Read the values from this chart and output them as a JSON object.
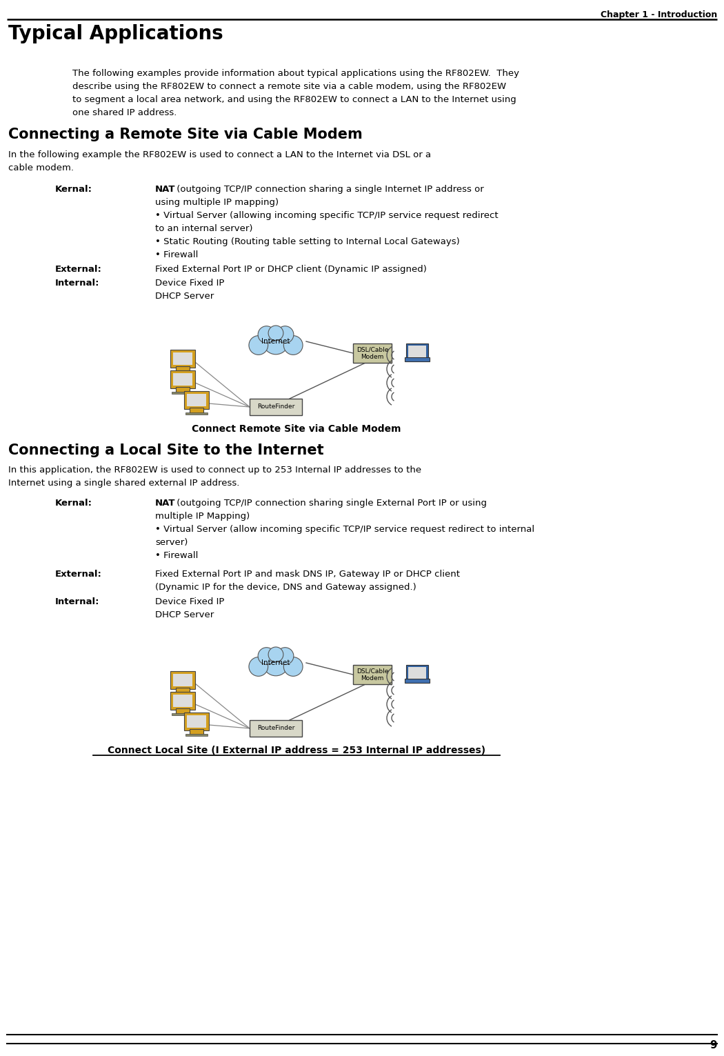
{
  "page_number": "9",
  "chapter_header": "Chapter 1 - Introduction",
  "title": "Typical Applications",
  "intro_text": "The following examples provide information about typical applications using the RF802EW.  They\ndescribe using the RF802EW to connect a remote site via a cable modem, using the RF802EW\nto segment a local area network, and using the RF802EW to connect a LAN to the Internet using\none shared IP address.",
  "section1_title": "Connecting a Remote Site via Cable Modem",
  "section1_intro": "In the following example the RF802EW is used to connect a LAN to the Internet via DSL or a\ncable modem.",
  "section1_kernal_label": "Kernal:",
  "section1_kernal_bold": "NAT",
  "section1_kernal_text1": " (outgoing TCP/IP connection sharing a single Internet IP address or",
  "section1_kernal_text2": "using multiple IP mapping)",
  "section1_kernal_text3": "• Virtual Server (allowing incoming specific TCP/IP service request redirect",
  "section1_kernal_text4": "to an internal server)",
  "section1_kernal_text5": "• Static Routing (Routing table setting to Internal Local Gateways)",
  "section1_kernal_text6": "• Firewall",
  "section1_external_label": "External:",
  "section1_external_text": "Fixed External Port IP or DHCP client (Dynamic IP assigned)",
  "section1_internal_label": "Internal:",
  "section1_internal_text1": "Device Fixed IP",
  "section1_internal_text2": "DHCP Server",
  "section1_caption": "Connect Remote Site via Cable Modem",
  "section2_title": "Connecting a Local Site to the Internet",
  "section2_intro": "In this application, the RF802EW is used to connect up to 253 Internal IP addresses to the\nInternet using a single shared external IP address.",
  "section2_kernal_label": "Kernal:",
  "section2_kernal_bold": "NAT",
  "section2_kernal_text1": " (outgoing TCP/IP connection sharing single External Port IP or using",
  "section2_kernal_text2": "multiple IP Mapping)",
  "section2_kernal_text3": "• Virtual Server (allow incoming specific TCP/IP service request redirect to internal",
  "section2_kernal_text4": "server)",
  "section2_kernal_text5": "• Firewall",
  "section2_external_label": "External:",
  "section2_external_text1": "Fixed External Port IP and mask DNS IP, Gateway IP or DHCP client",
  "section2_external_text2": "(Dynamic IP for the device, DNS and Gateway assigned.)",
  "section2_internal_label": "Internal:",
  "section2_internal_text1": "Device Fixed IP",
  "section2_internal_text2": "DHCP Server",
  "section2_caption": "Connect Local Site (I External IP address = 253 Internal IP addresses)",
  "bg_color": "#ffffff",
  "text_color": "#000000",
  "title_color": "#000000"
}
